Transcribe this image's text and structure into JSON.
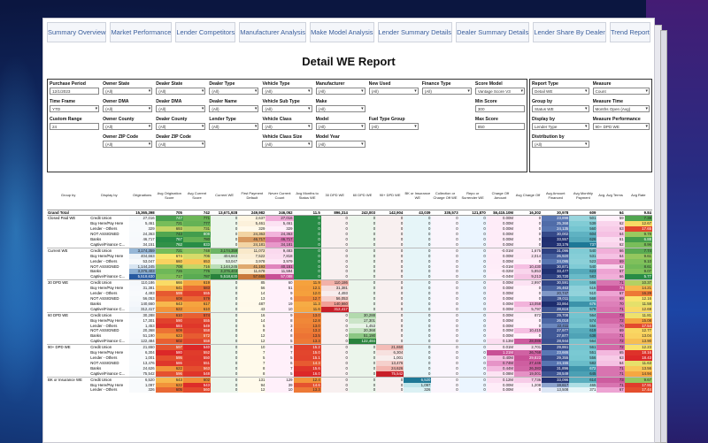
{
  "tabs": [
    "Summary Overview",
    "Market Performance",
    "Lender Competitors",
    "Manufacturer Analysis",
    "Make Model Analysis",
    "Lender Summary Details",
    "Dealer Summary Details",
    "Lender Share By Dealer",
    "Trend Report"
  ],
  "title": "Detail WE Report",
  "filters": [
    {
      "label": "Purchase Period",
      "value": "12/1/2023",
      "dd": false
    },
    {
      "label": "Owner State",
      "value": "(All)",
      "dd": true
    },
    {
      "label": "Dealer State",
      "value": "(All)",
      "dd": true
    },
    {
      "label": "Dealer Type",
      "value": "(All)",
      "dd": true
    },
    {
      "label": "Vehicle Type",
      "value": "(All)",
      "dd": true
    },
    {
      "label": "Manufacturer",
      "value": "(All)",
      "dd": true
    },
    {
      "label": "New Used",
      "value": "(All)",
      "dd": true
    },
    {
      "label": "Finance Type",
      "value": "(All)",
      "dd": true
    },
    {
      "label": "Score Model",
      "value": "Vantage Score V3",
      "dd": true
    },
    {
      "label": "Time Frame",
      "value": "YTD",
      "dd": true
    },
    {
      "label": "Owner DMA",
      "value": "(All)",
      "dd": true
    },
    {
      "label": "Dealer DMA",
      "value": "(All)",
      "dd": true
    },
    {
      "label": "Dealer Name",
      "value": "(All)",
      "dd": true
    },
    {
      "label": "Vehicle Sub Type",
      "value": "(All)",
      "dd": true
    },
    {
      "label": "Make",
      "value": "(All)",
      "dd": true
    },
    {
      "label": "",
      "value": "",
      "dd": false
    },
    {
      "label": "",
      "value": "",
      "dd": false
    },
    {
      "label": "Min Score",
      "value": "300",
      "dd": false
    },
    {
      "label": "Custom Range",
      "value": "24",
      "dd": false
    },
    {
      "label": "Owner County",
      "value": "(All)",
      "dd": true
    },
    {
      "label": "Dealer County",
      "value": "(All)",
      "dd": true
    },
    {
      "label": "Lender Type",
      "value": "(All)",
      "dd": true
    },
    {
      "label": "Vehicle Class",
      "value": "(All)",
      "dd": true
    },
    {
      "label": "Model",
      "value": "(All)",
      "dd": true
    },
    {
      "label": "Fuel Type Group",
      "value": "(All)",
      "dd": true
    },
    {
      "label": "",
      "value": "",
      "dd": false
    },
    {
      "label": "Max Score",
      "value": "850",
      "dd": false
    },
    {
      "label": "",
      "value": "",
      "dd": false
    },
    {
      "label": "Owner ZIP Code",
      "value": "(All)",
      "dd": true
    },
    {
      "label": "Dealer ZIP Code",
      "value": "(All)",
      "dd": true
    },
    {
      "label": "",
      "value": "",
      "dd": false
    },
    {
      "label": "Vehicle Class Size",
      "value": "(All)",
      "dd": true
    },
    {
      "label": "Model Year",
      "value": "(All)",
      "dd": true
    }
  ],
  "filters2": [
    {
      "label": "Report Type",
      "value": "Detail WE",
      "dd": true
    },
    {
      "label": "Measure",
      "value": "Count",
      "dd": true
    },
    {
      "label": "Group by",
      "value": "Status WE",
      "dd": true
    },
    {
      "label": "Measure Time",
      "value": "Months Open (Avg)",
      "dd": true
    },
    {
      "label": "Display by",
      "value": "Lender Type",
      "dd": true
    },
    {
      "label": "Measure Performance",
      "value": "90+ DPD WE",
      "dd": true
    },
    {
      "label": "Distribution by",
      "value": "(All)",
      "dd": true
    }
  ],
  "columns": [
    "Group by",
    "Display by",
    "Originations",
    "Avg Origination Score",
    "Avg Current Score",
    "Current WE",
    "First Payment Default",
    "Never Current Count",
    "Avg Months to Status WE",
    "30 DPD WE",
    "60 DPD WE",
    "90+ DPD WE",
    "BK or Insurance WE",
    "Collection or Charge Off WE",
    "Repo or Surrender WE",
    "Charge Off Amount",
    "Avg Charge Off",
    "Avg Amount Financed",
    "Avg Monthly Payment",
    "Avg. Avg Terms",
    "Avg Rate"
  ],
  "grand": [
    "Grand Total",
    "",
    "15,365,398",
    "705",
    "742",
    "13,671,928",
    "249,982",
    "246,052",
    "11.5",
    "896,314",
    "243,003",
    "142,904",
    "43,039",
    "335,573",
    "121,870",
    "$6,415.10M",
    "16,302",
    "30,978",
    "609",
    "64",
    "9.84"
  ],
  "rows": [
    [
      "Closed Paid WE",
      "Credit Union",
      "27,016",
      "747",
      "771",
      "0",
      "2,637",
      "27,016",
      "0",
      "0",
      "0",
      "0",
      "0",
      "0",
      "0",
      "0.00M",
      "0",
      "23,898",
      "501",
      "59",
      "7.38"
    ],
    [
      "",
      "Buy Here/Pay Here",
      "5,461",
      "721",
      "777",
      "0",
      "5,461",
      "5,461",
      "0",
      "0",
      "0",
      "0",
      "0",
      "0",
      "0",
      "0.00M",
      "0",
      "25,368",
      "539",
      "62",
      "12.67"
    ],
    [
      "",
      "Lender - Others",
      "329",
      "693",
      "731",
      "0",
      "329",
      "329",
      "0",
      "0",
      "0",
      "0",
      "0",
      "0",
      "0",
      "0.00M",
      "0",
      "24,135",
      "560",
      "63",
      "17.65"
    ],
    [
      "",
      "NOT ASSIGNED",
      "24,363",
      "743",
      "808",
      "0",
      "24,363",
      "24,363",
      "0",
      "0",
      "0",
      "0",
      "0",
      "0",
      "0",
      "0.00M",
      "0",
      "30,002",
      "604",
      "64",
      "9.78"
    ],
    [
      "",
      "Banks",
      "46,717",
      "767",
      "780",
      "0",
      "46,717",
      "46,717",
      "0",
      "0",
      "0",
      "0",
      "0",
      "0",
      "0",
      "0.00M",
      "0",
      "33,557",
      "626",
      "61",
      "6.88"
    ],
    [
      "",
      "Captive/Finance C...",
      "34,151",
      "762",
      "833",
      "0",
      "24,181",
      "34,181",
      "0",
      "0",
      "0",
      "0",
      "0",
      "0",
      "0",
      "0.00M",
      "0",
      "33,176",
      "737",
      "62",
      "8.96"
    ],
    [
      "Current WE",
      "Credit Union",
      "3,174,359",
      "721",
      "748",
      "3,174,359",
      "11,072",
      "9,483",
      "0",
      "0",
      "0",
      "0",
      "0",
      "0",
      "0",
      "-0.01M",
      "1,675",
      "31,096",
      "540",
      "66",
      "7.74"
    ],
    [
      "",
      "Buy Here/Pay Here",
      "404,663",
      "674",
      "706",
      "404,663",
      "7,522",
      "7,818",
      "0",
      "0",
      "0",
      "0",
      "0",
      "0",
      "0",
      "0.00M",
      "2,014",
      "26,920",
      "531",
      "64",
      "9.61"
    ],
    [
      "",
      "Lender - Others",
      "53,047",
      "660",
      "653",
      "53,047",
      "3,978",
      "3,979",
      "0",
      "0",
      "0",
      "0",
      "0",
      "0",
      "0",
      "0.00M",
      "0",
      "24,095",
      "523",
      "69",
      "9.10"
    ],
    [
      "",
      "NOT ASSIGNED",
      "1,144,245",
      "708",
      "716",
      "1,144,245",
      "41,193",
      "40,151",
      "0",
      "0",
      "0",
      "0",
      "0",
      "0",
      "0",
      "-0.01M",
      "10,430",
      "30,871",
      "540",
      "62",
      "8.61"
    ],
    [
      "",
      "Banks",
      "3,376,403",
      "726",
      "776",
      "3,376,403",
      "11,678",
      "11,594",
      "0",
      "0",
      "0",
      "0",
      "0",
      "0",
      "0",
      "-0.02M",
      "5,853",
      "33,477",
      "623",
      "67",
      "9.07"
    ],
    [
      "",
      "Captive/Finance C...",
      "5,518,630",
      "717",
      "787",
      "5,518,630",
      "57,665",
      "57,088",
      "0",
      "0",
      "0",
      "0",
      "0",
      "0",
      "0",
      "-0.04M",
      "9,213",
      "30,720",
      "583",
      "66",
      "5.77"
    ],
    [
      "30 DPD WE",
      "Credit Union",
      "110,186",
      "666",
      "619",
      "0",
      "85",
      "60",
      "11.9",
      "110,186",
      "0",
      "0",
      "0",
      "0",
      "0",
      "0.00M",
      "2,997",
      "30,591",
      "566",
      "71",
      "10.37"
    ],
    [
      "",
      "Buy Here/Pay Here",
      "31,381",
      "641",
      "583",
      "0",
      "56",
      "51",
      "12.1",
      "31,381",
      "0",
      "0",
      "0",
      "0",
      "0",
      "0.00M",
      "0",
      "26,463",
      "516",
      "74",
      "14.21"
    ],
    [
      "",
      "Lender - Others",
      "4,493",
      "599",
      "555",
      "0",
      "14",
      "9",
      "12.0",
      "4,493",
      "0",
      "0",
      "0",
      "0",
      "0",
      "0.00M",
      "0",
      "20,747",
      "510",
      "67",
      "16.29"
    ],
    [
      "",
      "NOT ASSIGNED",
      "56,053",
      "608",
      "579",
      "0",
      "13",
      "6",
      "12.7",
      "56,053",
      "0",
      "0",
      "0",
      "0",
      "0",
      "0.00M",
      "0",
      "29,011",
      "568",
      "69",
      "12.16"
    ],
    [
      "",
      "Banks",
      "140,660",
      "643",
      "617",
      "0",
      "487",
      "19",
      "11.3",
      "140,660",
      "0",
      "0",
      "0",
      "0",
      "0",
      "0.00M",
      "13,058",
      "33,864",
      "676",
      "70",
      "11.59"
    ],
    [
      "",
      "Captive/Finance C...",
      "312,417",
      "622",
      "610",
      "0",
      "43",
      "10",
      "11.6",
      "312,417",
      "0",
      "0",
      "0",
      "0",
      "0",
      "0.00M",
      "5,797",
      "28,616",
      "579",
      "71",
      "12.69"
    ],
    [
      "60 DPD WE",
      "Credit Union",
      "30,288",
      "610",
      "574",
      "0",
      "16",
      "9",
      "13.0",
      "0",
      "30,288",
      "0",
      "0",
      "0",
      "0",
      "0.00M",
      "872",
      "29,708",
      "564",
      "73",
      "11.81"
    ],
    [
      "",
      "Buy Here/Pay Here",
      "17,301",
      "590",
      "555",
      "0",
      "14",
      "8",
      "12.8",
      "0",
      "17,301",
      "0",
      "0",
      "0",
      "0",
      "0.00M",
      "0",
      "26,018",
      "574",
      "72",
      "15.08"
    ],
    [
      "",
      "Lender - Others",
      "1,453",
      "584",
      "549",
      "0",
      "5",
      "3",
      "13.0",
      "0",
      "1,453",
      "0",
      "0",
      "0",
      "0",
      "0.00M",
      "0",
      "22,411",
      "556",
      "70",
      "17.54"
    ],
    [
      "",
      "NOT ASSIGNED",
      "20,368",
      "609",
      "558",
      "0",
      "8",
      "4",
      "13.2",
      "0",
      "20,368",
      "0",
      "0",
      "0",
      "0",
      "0.00M",
      "10,415",
      "27,977",
      "619",
      "69",
      "12.77"
    ],
    [
      "",
      "Banks",
      "51,190",
      "623",
      "572",
      "0",
      "12",
      "8",
      "13.5",
      "0",
      "51,190",
      "0",
      "0",
      "0",
      "0",
      "0.00M",
      "0",
      "27,877",
      "638",
      "71",
      "13.04"
    ],
    [
      "",
      "Captive/Finance C...",
      "122,484",
      "602",
      "558",
      "0",
      "12",
      "5",
      "13.3",
      "0",
      "122,484",
      "0",
      "0",
      "0",
      "0",
      "0.13M",
      "28,086",
      "28,944",
      "564",
      "72",
      "13.90"
    ],
    [
      "90+ DPD WE",
      "Credit Union",
      "21,650",
      "597",
      "540",
      "0",
      "10",
      "8",
      "15.2",
      "0",
      "0",
      "21,650",
      "0",
      "0",
      "0",
      "0.01M",
      "2,701",
      "29,861",
      "561",
      "72",
      "12.23"
    ],
    [
      "",
      "Buy Here/Pay Here",
      "6,304",
      "580",
      "552",
      "0",
      "7",
      "7",
      "15.0",
      "0",
      "0",
      "6,304",
      "0",
      "0",
      "0",
      "1.21M",
      "26,769",
      "23,665",
      "551",
      "65",
      "18.16"
    ],
    [
      "",
      "Lender - Others",
      "1,001",
      "595",
      "550",
      "0",
      "5",
      "5",
      "15.1",
      "0",
      "0",
      "1,001",
      "0",
      "0",
      "0",
      "0.40M",
      "29,823",
      "29,355",
      "556",
      "63",
      "18.43"
    ],
    [
      "",
      "NOT ASSIGNED",
      "13,476",
      "586",
      "551",
      "0",
      "7",
      "6",
      "14.3",
      "0",
      "0",
      "13,476",
      "0",
      "0",
      "0",
      "0.74M",
      "27,446",
      "24,155",
      "582",
      "64",
      "11.63"
    ],
    [
      "",
      "Banks",
      "24,626",
      "622",
      "563",
      "0",
      "8",
      "7",
      "15.6",
      "0",
      "0",
      "24,626",
      "0",
      "0",
      "0",
      "0.44M",
      "26,383",
      "31,896",
      "672",
      "71",
      "13.56"
    ],
    [
      "",
      "Captive/Finance C...",
      "75,542",
      "596",
      "548",
      "0",
      "8",
      "5",
      "16.0",
      "0",
      "0",
      "75,542",
      "0",
      "0",
      "0",
      "0.08M",
      "19,001",
      "28,549",
      "645",
      "71",
      "14.94"
    ],
    [
      "BK or Insurance WE",
      "Credit Union",
      "6,520",
      "643",
      "602",
      "0",
      "131",
      "129",
      "12.4",
      "0",
      "0",
      "0",
      "6,520",
      "0",
      "0",
      "0.12M",
      "7,736",
      "33,096",
      "614",
      "73",
      "9.67"
    ],
    [
      "",
      "Buy Here/Pay Here",
      "1,097",
      "622",
      "543",
      "0",
      "94",
      "39",
      "14.6",
      "0",
      "0",
      "0",
      "1,097",
      "0",
      "0",
      "0.00M",
      "1,208",
      "19,617",
      "465",
      "71",
      "17.91"
    ],
    [
      "",
      "Lender - Others",
      "326",
      "605",
      "560",
      "0",
      "12",
      "10",
      "13.3",
      "0",
      "0",
      "0",
      "326",
      "0",
      "0",
      "0.00M",
      "0",
      "13,508",
      "371",
      "67",
      "17.44"
    ]
  ]
}
